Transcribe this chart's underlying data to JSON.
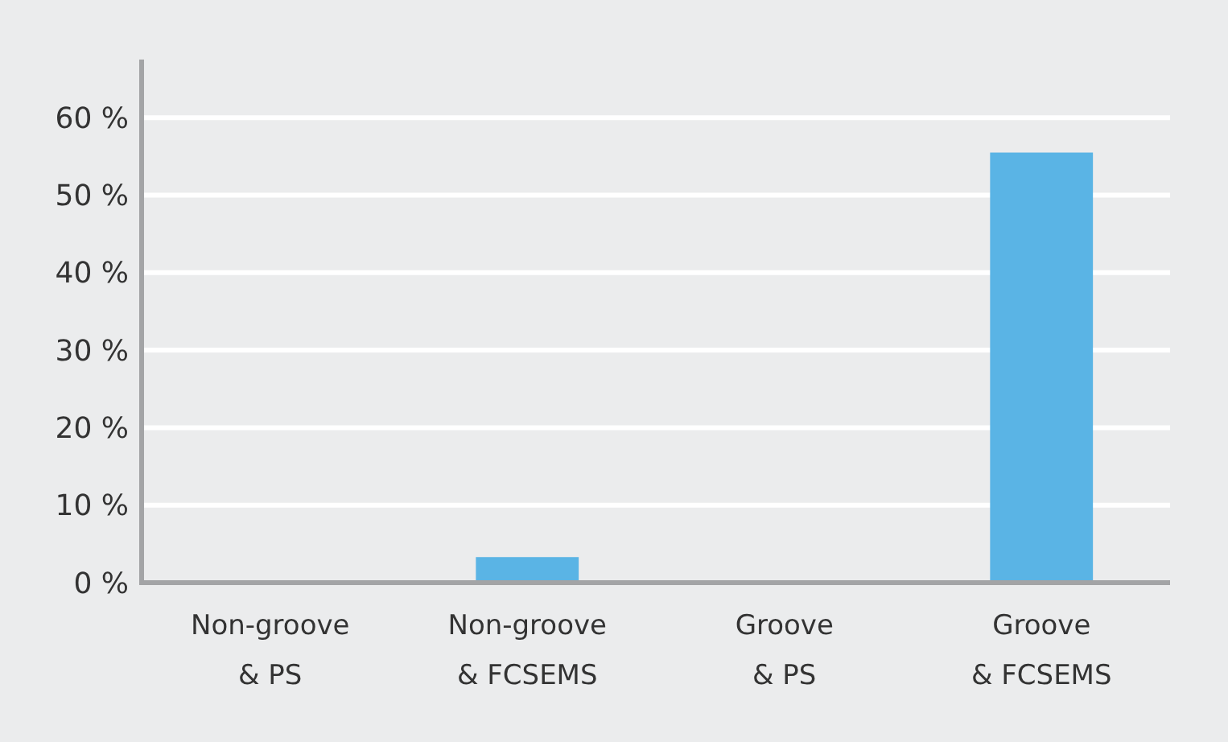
{
  "chart_data": {
    "type": "bar",
    "categories": [
      "Non-groove\n& PS",
      "Non-groove\n& FCSEMS",
      "Groove\n& PS",
      "Groove\n& FCSEMS"
    ],
    "values": [
      0,
      3.3,
      0,
      55.5
    ],
    "color": "#5ab4e5",
    "ylim": [
      0,
      67.5
    ],
    "yticks": [
      {
        "value": 0,
        "label": "0 %"
      },
      {
        "value": 10,
        "label": "10 %"
      },
      {
        "value": 20,
        "label": "20 %"
      },
      {
        "value": 30,
        "label": "30 %"
      },
      {
        "value": 40,
        "label": "40 %"
      },
      {
        "value": 50,
        "label": "50 %"
      },
      {
        "value": 60,
        "label": "60 %"
      }
    ],
    "grid": "y"
  }
}
